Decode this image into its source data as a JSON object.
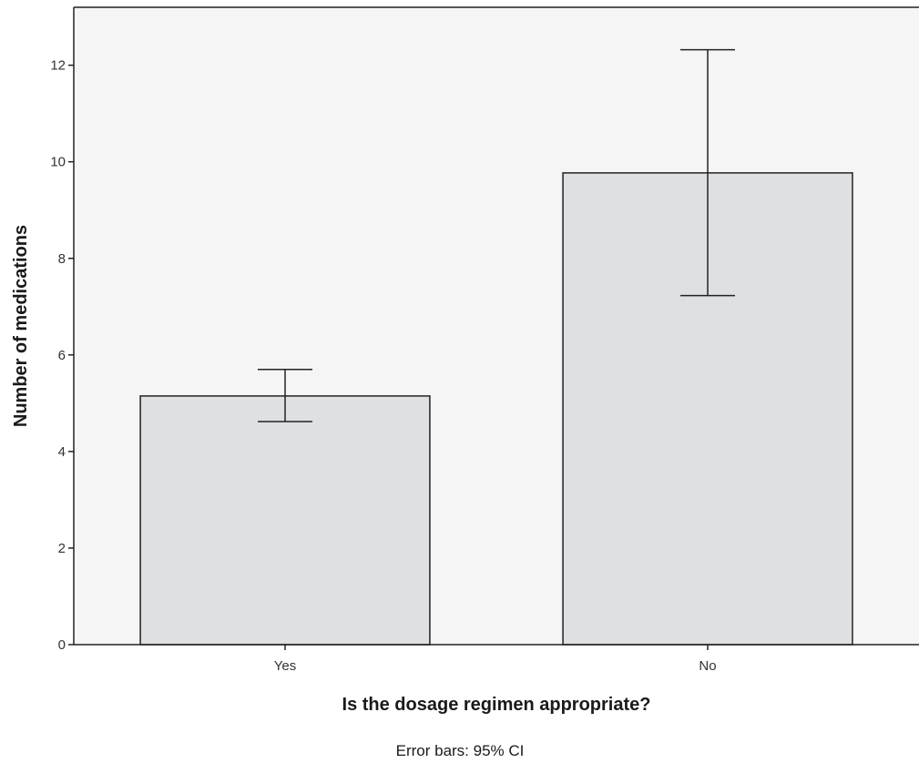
{
  "chart_data": {
    "type": "bar",
    "categories": [
      "Yes",
      "No"
    ],
    "values": [
      5.15,
      9.77
    ],
    "error_bars": {
      "lower": [
        4.62,
        7.23
      ],
      "upper": [
        5.7,
        12.32
      ]
    },
    "xlabel": "Is the dosage regimen appropriate?",
    "ylabel": "Number of medications",
    "ylim": [
      0,
      13.2
    ],
    "yticks": [
      0,
      2,
      4,
      6,
      8,
      10,
      12
    ],
    "footnote": "Error bars: 95% CI",
    "grid": false,
    "legend": "none"
  },
  "colors": {
    "plot_background": "#f4f5f4",
    "bar_fill": "#dfe0e2",
    "bar_stroke": "#222222",
    "axis": "#222222"
  }
}
